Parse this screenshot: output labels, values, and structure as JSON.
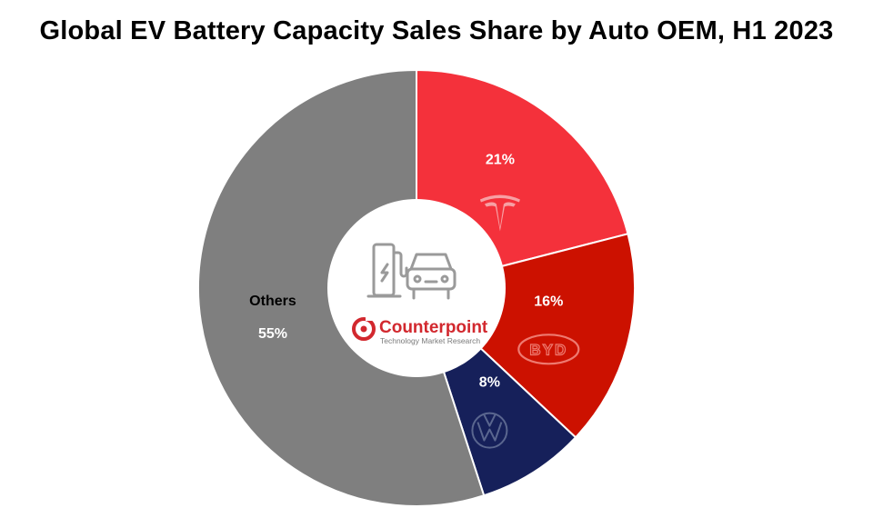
{
  "chart_data": {
    "type": "pie",
    "title": "Global EV Battery Capacity Sales Share by Auto OEM, H1 2023",
    "donut": true,
    "start_angle_deg": 0,
    "direction": "clockwise",
    "slices": [
      {
        "name": "",
        "logo": "tesla-logo",
        "value": 21,
        "label": "21%",
        "color": "#f4313b",
        "label_color": "#ffffff"
      },
      {
        "name": "",
        "logo": "byd-logo",
        "value": 16,
        "label": "16%",
        "color": "#cc1100",
        "label_color": "#ffffff"
      },
      {
        "name": "",
        "logo": "volkswagen-logo",
        "value": 8,
        "label": "8%",
        "color": "#16205a",
        "label_color": "#ffffff"
      },
      {
        "name": "Others",
        "logo": "",
        "value": 55,
        "label": "55%",
        "color": "#7f7f7f",
        "label_color": "#ffffff",
        "name_color": "#000000"
      }
    ],
    "legend": "none"
  },
  "center": {
    "icon": "ev-charging-station-icon",
    "brand": "Counterpoint",
    "tagline": "Technology Market Research",
    "brand_color": "#d2282e"
  }
}
